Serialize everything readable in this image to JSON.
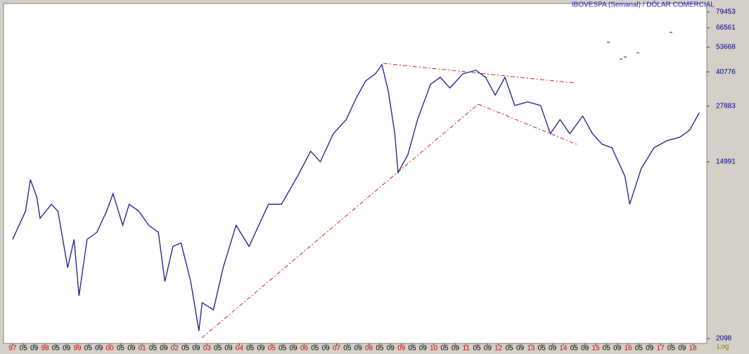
{
  "chart_data": {
    "type": "line",
    "title": "IBOVESPA (Semanal) / DÓLAR COMERCIAL",
    "scale_label": "Log",
    "log_scale": true,
    "xlim": [
      1996.72,
      2018.43
    ],
    "ylim": [
      1987,
      87270
    ],
    "yticks": [
      79453,
      66561,
      53668,
      40776,
      27883,
      14991,
      2098
    ],
    "xticks": [
      {
        "value": 1997,
        "label": "97"
      },
      {
        "value": 1997.333,
        "label": "05"
      },
      {
        "value": 1997.667,
        "label": "09"
      },
      {
        "value": 1998,
        "label": "98"
      },
      {
        "value": 1998.333,
        "label": "05"
      },
      {
        "value": 1998.667,
        "label": "09"
      },
      {
        "value": 1999,
        "label": "99"
      },
      {
        "value": 1999.333,
        "label": "05"
      },
      {
        "value": 1999.667,
        "label": "09"
      },
      {
        "value": 2000,
        "label": "00"
      },
      {
        "value": 2000.333,
        "label": "05"
      },
      {
        "value": 2000.667,
        "label": "09"
      },
      {
        "value": 2001,
        "label": "01"
      },
      {
        "value": 2001.333,
        "label": "05"
      },
      {
        "value": 2001.667,
        "label": "09"
      },
      {
        "value": 2002,
        "label": "02"
      },
      {
        "value": 2002.333,
        "label": "05"
      },
      {
        "value": 2002.667,
        "label": "09"
      },
      {
        "value": 2003,
        "label": "03"
      },
      {
        "value": 2003.333,
        "label": "05"
      },
      {
        "value": 2003.667,
        "label": "09"
      },
      {
        "value": 2004,
        "label": "04"
      },
      {
        "value": 2004.333,
        "label": "05"
      },
      {
        "value": 2004.667,
        "label": "09"
      },
      {
        "value": 2005,
        "label": "05"
      },
      {
        "value": 2005.333,
        "label": "05"
      },
      {
        "value": 2005.667,
        "label": "09"
      },
      {
        "value": 2006,
        "label": "06"
      },
      {
        "value": 2006.333,
        "label": "05"
      },
      {
        "value": 2006.667,
        "label": "09"
      },
      {
        "value": 2007,
        "label": "07"
      },
      {
        "value": 2007.333,
        "label": "05"
      },
      {
        "value": 2007.667,
        "label": "09"
      },
      {
        "value": 2008,
        "label": "08"
      },
      {
        "value": 2008.333,
        "label": "05"
      },
      {
        "value": 2008.667,
        "label": "09"
      },
      {
        "value": 2009,
        "label": "09"
      },
      {
        "value": 2009.333,
        "label": "05"
      },
      {
        "value": 2009.667,
        "label": "09"
      },
      {
        "value": 2010,
        "label": "10"
      },
      {
        "value": 2010.333,
        "label": "05"
      },
      {
        "value": 2010.667,
        "label": "09"
      },
      {
        "value": 2011,
        "label": "11"
      },
      {
        "value": 2011.333,
        "label": "05"
      },
      {
        "value": 2011.667,
        "label": "09"
      },
      {
        "value": 2012,
        "label": "12"
      },
      {
        "value": 2012.333,
        "label": "05"
      },
      {
        "value": 2012.667,
        "label": "09"
      },
      {
        "value": 2013,
        "label": "13"
      },
      {
        "value": 2013.333,
        "label": "05"
      },
      {
        "value": 2013.667,
        "label": "09"
      },
      {
        "value": 2014,
        "label": "14"
      },
      {
        "value": 2014.333,
        "label": "05"
      },
      {
        "value": 2014.667,
        "label": "09"
      },
      {
        "value": 2015,
        "label": "15"
      },
      {
        "value": 2015.333,
        "label": "05"
      },
      {
        "value": 2015.667,
        "label": "09"
      },
      {
        "value": 2016,
        "label": "16"
      },
      {
        "value": 2016.333,
        "label": "05"
      },
      {
        "value": 2016.667,
        "label": "09"
      },
      {
        "value": 2017,
        "label": "17"
      },
      {
        "value": 2017.333,
        "label": "05"
      },
      {
        "value": 2017.667,
        "label": "09"
      },
      {
        "value": 2018,
        "label": "18"
      }
    ],
    "series": [
      {
        "name": "IBOVESPA",
        "color": "#1a1a8c",
        "x": [
          1997.0,
          1997.4,
          1997.55,
          1997.75,
          1997.85,
          1998.2,
          1998.4,
          1998.7,
          1998.9,
          1999.05,
          1999.3,
          1999.6,
          1999.9,
          2000.1,
          2000.4,
          2000.6,
          2000.9,
          2001.2,
          2001.5,
          2001.7,
          2001.95,
          2002.2,
          2002.5,
          2002.75,
          2002.85,
          2003.2,
          2003.5,
          2003.9,
          2004.3,
          2004.6,
          2004.9,
          2005.3,
          2005.8,
          2006.2,
          2006.5,
          2006.9,
          2007.3,
          2007.6,
          2007.9,
          2008.2,
          2008.4,
          2008.6,
          2008.8,
          2008.9,
          2009.2,
          2009.5,
          2009.9,
          2010.2,
          2010.5,
          2010.9,
          2011.3,
          2011.6,
          2011.9,
          2012.2,
          2012.5,
          2012.9,
          2013.3,
          2013.6,
          2013.9,
          2014.2,
          2014.6,
          2014.9,
          2015.2,
          2015.5,
          2015.9,
          2016.05,
          2016.4,
          2016.8,
          2017.2,
          2017.6,
          2017.9,
          2018.2
        ],
        "values": [
          6324,
          8650,
          12300,
          10100,
          8000,
          9350,
          8650,
          4620,
          6324,
          3380,
          6324,
          6840,
          8650,
          10520,
          7400,
          9350,
          8650,
          7400,
          6840,
          3955,
          5850,
          6080,
          3955,
          2286,
          3126,
          2890,
          4620,
          7400,
          5850,
          7400,
          9350,
          9350,
          12790,
          16860,
          15000,
          20500,
          24000,
          30340,
          36900,
          39900,
          44200,
          32800,
          20500,
          13300,
          16200,
          24000,
          35500,
          38400,
          34100,
          39900,
          41500,
          38400,
          31500,
          38400,
          28050,
          29200,
          28050,
          20500,
          24000,
          20500,
          24950,
          20500,
          18240,
          17540,
          12790,
          9350,
          13840,
          17540,
          18970,
          19720,
          21330,
          25940
        ]
      }
    ]
  }
}
